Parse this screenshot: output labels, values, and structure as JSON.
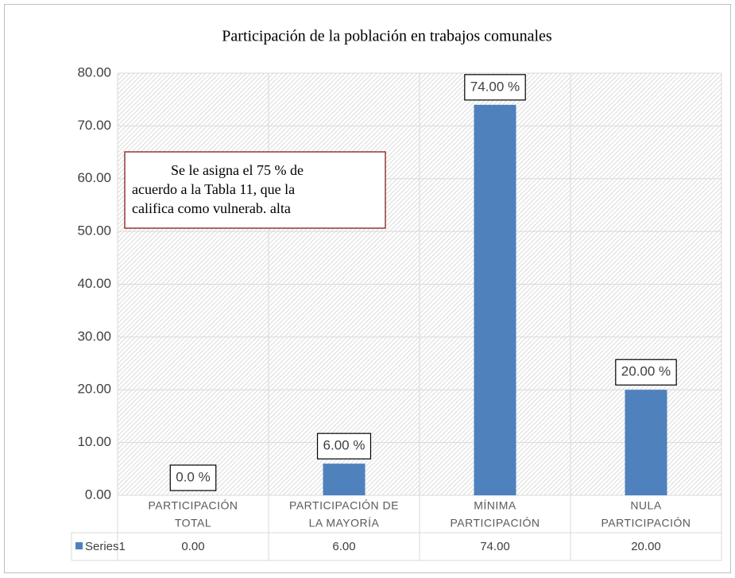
{
  "chart_data": {
    "type": "bar",
    "title": "Participación de la población en trabajos comunales",
    "categories": [
      [
        "PARTICIPACIÓN",
        "TOTAL"
      ],
      [
        "PARTICIPACIÓN DE",
        "LA MAYORÍA"
      ],
      [
        "MÍNIMA",
        "PARTICIPACIÓN"
      ],
      [
        "NULA",
        "PARTICIPACIÓN"
      ]
    ],
    "series": [
      {
        "name": "Series1",
        "color": "#4f81bd",
        "values": [
          0,
          6,
          74,
          20
        ],
        "value_labels": [
          "0.0 %",
          "6.00 %",
          "74.00 %",
          "20.00 %"
        ],
        "table_labels": [
          "0.00",
          "6.00",
          "74.00",
          "20.00"
        ]
      }
    ],
    "ylim": [
      0,
      80
    ],
    "yticks": [
      {
        "value": 0,
        "label": "0.00"
      },
      {
        "value": 10,
        "label": "10.00"
      },
      {
        "value": 20,
        "label": "20.00"
      },
      {
        "value": 30,
        "label": "30.00"
      },
      {
        "value": 40,
        "label": "40.00"
      },
      {
        "value": 50,
        "label": "50.00"
      },
      {
        "value": 60,
        "label": "60.00"
      },
      {
        "value": 70,
        "label": "70.00"
      },
      {
        "value": 80,
        "label": "80.00"
      }
    ],
    "grid": true,
    "annotation": [
      "Se le asigna el 75 % de",
      "acuerdo a la Tabla 11, que la",
      "califica como vulnerab. alta"
    ]
  }
}
